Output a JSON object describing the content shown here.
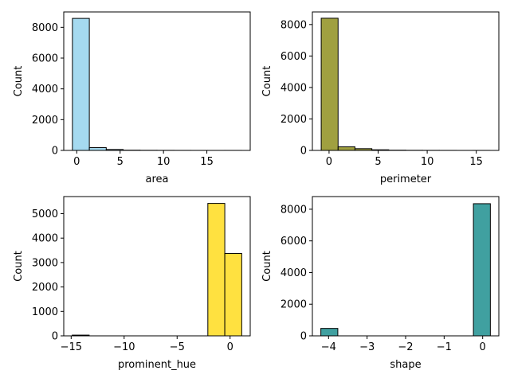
{
  "chart_data": [
    {
      "type": "bar",
      "subtype": "histogram",
      "xlabel": "area",
      "ylabel": "Count",
      "color": "#87ceeb",
      "alpha": 0.75,
      "edge_color": "#000000",
      "bin_edges": [
        -0.5,
        1.45,
        3.4,
        5.35,
        7.3,
        9.25,
        11.2,
        13.15,
        15.1,
        17.05,
        19.0
      ],
      "counts": [
        8580,
        180,
        60,
        15,
        8,
        5,
        3,
        2,
        1,
        2
      ],
      "xlim": [
        -1.5,
        20.0
      ],
      "ylim": [
        0,
        9000
      ],
      "xticks": [
        0,
        5,
        10,
        15
      ],
      "xtick_labels": [
        "0",
        "5",
        "10",
        "15"
      ],
      "yticks": [
        0,
        2000,
        4000,
        6000,
        8000
      ],
      "ytick_labels": [
        "0",
        "2000",
        "4000",
        "6000",
        "8000"
      ]
    },
    {
      "type": "bar",
      "subtype": "histogram",
      "xlabel": "perimeter",
      "ylabel": "Count",
      "color": "#808000",
      "alpha": 0.75,
      "edge_color": "#000000",
      "bin_edges": [
        -0.8,
        0.92,
        2.64,
        4.36,
        6.08,
        7.8,
        9.52,
        11.24,
        12.96,
        14.68,
        16.4
      ],
      "counts": [
        8400,
        230,
        110,
        40,
        15,
        8,
        5,
        3,
        1,
        2
      ],
      "xlim": [
        -1.7,
        17.3
      ],
      "ylim": [
        0,
        8800
      ],
      "xticks": [
        0,
        5,
        10,
        15
      ],
      "xtick_labels": [
        "0",
        "5",
        "10",
        "15"
      ],
      "yticks": [
        0,
        2000,
        4000,
        6000,
        8000
      ],
      "ytick_labels": [
        "0",
        "2000",
        "4000",
        "6000",
        "8000"
      ]
    },
    {
      "type": "bar",
      "subtype": "histogram",
      "xlabel": "prominent_hue",
      "ylabel": "Count",
      "color": "#ffd700",
      "alpha": 0.75,
      "edge_color": "#000000",
      "bin_edges": [
        -14.9,
        -13.3,
        -11.7,
        -10.1,
        -8.5,
        -6.9,
        -5.3,
        -3.7,
        -2.1,
        -0.5,
        1.1
      ],
      "counts": [
        30,
        0,
        0,
        0,
        0,
        0,
        0,
        0,
        5420,
        3370
      ],
      "xlim": [
        -15.7,
        1.9
      ],
      "ylim": [
        0,
        5700
      ],
      "xticks": [
        -15,
        -10,
        -5,
        0
      ],
      "xtick_labels": [
        "−15",
        "−10",
        "−5",
        "0"
      ],
      "yticks": [
        0,
        1000,
        2000,
        3000,
        4000,
        5000
      ],
      "ytick_labels": [
        "0",
        "1000",
        "2000",
        "3000",
        "4000",
        "5000"
      ]
    },
    {
      "type": "bar",
      "subtype": "histogram",
      "xlabel": "shape",
      "ylabel": "Count",
      "color": "#008080",
      "alpha": 0.75,
      "edge_color": "#000000",
      "bin_edges": [
        -4.2,
        -3.76,
        -3.32,
        -2.88,
        -2.44,
        -2.0,
        -1.56,
        -1.12,
        -0.68,
        -0.24,
        0.2
      ],
      "counts": [
        470,
        0,
        0,
        0,
        0,
        0,
        0,
        0,
        0,
        8350
      ],
      "xlim": [
        -4.42,
        0.42
      ],
      "ylim": [
        0,
        8800
      ],
      "xticks": [
        -4,
        -3,
        -2,
        -1,
        0
      ],
      "xtick_labels": [
        "−4",
        "−3",
        "−2",
        "−1",
        "0"
      ],
      "yticks": [
        0,
        2000,
        4000,
        6000,
        8000
      ],
      "ytick_labels": [
        "0",
        "2000",
        "4000",
        "6000",
        "8000"
      ]
    }
  ]
}
